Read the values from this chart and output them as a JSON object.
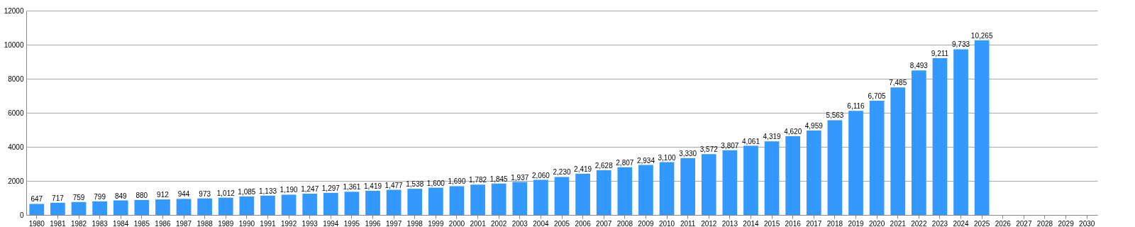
{
  "chart_data": {
    "type": "bar",
    "categories": [
      "1980",
      "1981",
      "1982",
      "1983",
      "1984",
      "1985",
      "1986",
      "1987",
      "1988",
      "1989",
      "1990",
      "1991",
      "1992",
      "1993",
      "1994",
      "1995",
      "1996",
      "1997",
      "1998",
      "1999",
      "2000",
      "2001",
      "2002",
      "2003",
      "2004",
      "2005",
      "2006",
      "2007",
      "2008",
      "2009",
      "2010",
      "2011",
      "2012",
      "2013",
      "2014",
      "2015",
      "2016",
      "2017",
      "2018",
      "2019",
      "2020",
      "2021",
      "2022",
      "2023",
      "2024",
      "2025",
      "2026",
      "2027",
      "2028",
      "2029",
      "2030"
    ],
    "values": [
      647,
      717,
      759,
      799,
      849,
      880,
      912,
      944,
      973,
      1012,
      1085,
      1133,
      1190,
      1247,
      1297,
      1361,
      1419,
      1477,
      1538,
      1600,
      1690,
      1782,
      1845,
      1937,
      2060,
      2230,
      2419,
      2628,
      2807,
      2934,
      3100,
      3330,
      3572,
      3807,
      4061,
      4319,
      4620,
      4959,
      5563,
      6116,
      6705,
      7485,
      8493,
      9211,
      9733,
      10265,
      null,
      null,
      null,
      null,
      null
    ],
    "value_labels": [
      "647",
      "717",
      "759",
      "799",
      "849",
      "880",
      "912",
      "944",
      "973",
      "1,012",
      "1,085",
      "1,133",
      "1,190",
      "1,247",
      "1,297",
      "1,361",
      "1,419",
      "1,477",
      "1,538",
      "1,600",
      "1,690",
      "1,782",
      "1,845",
      "1,937",
      "2,060",
      "2,230",
      "2,419",
      "2,628",
      "2,807",
      "2,934",
      "3,100",
      "3,330",
      "3,572",
      "3,807",
      "4,061",
      "4,319",
      "4,620",
      "4,959",
      "5,563",
      "6,116",
      "6,705",
      "7,485",
      "8,493",
      "9,211",
      "9,733",
      "10,265",
      null,
      null,
      null,
      null,
      null
    ],
    "color": "#3399ff",
    "ylim": [
      0,
      12000
    ],
    "yticks": [
      0,
      2000,
      4000,
      6000,
      8000,
      10000,
      12000
    ],
    "grid": "y"
  }
}
